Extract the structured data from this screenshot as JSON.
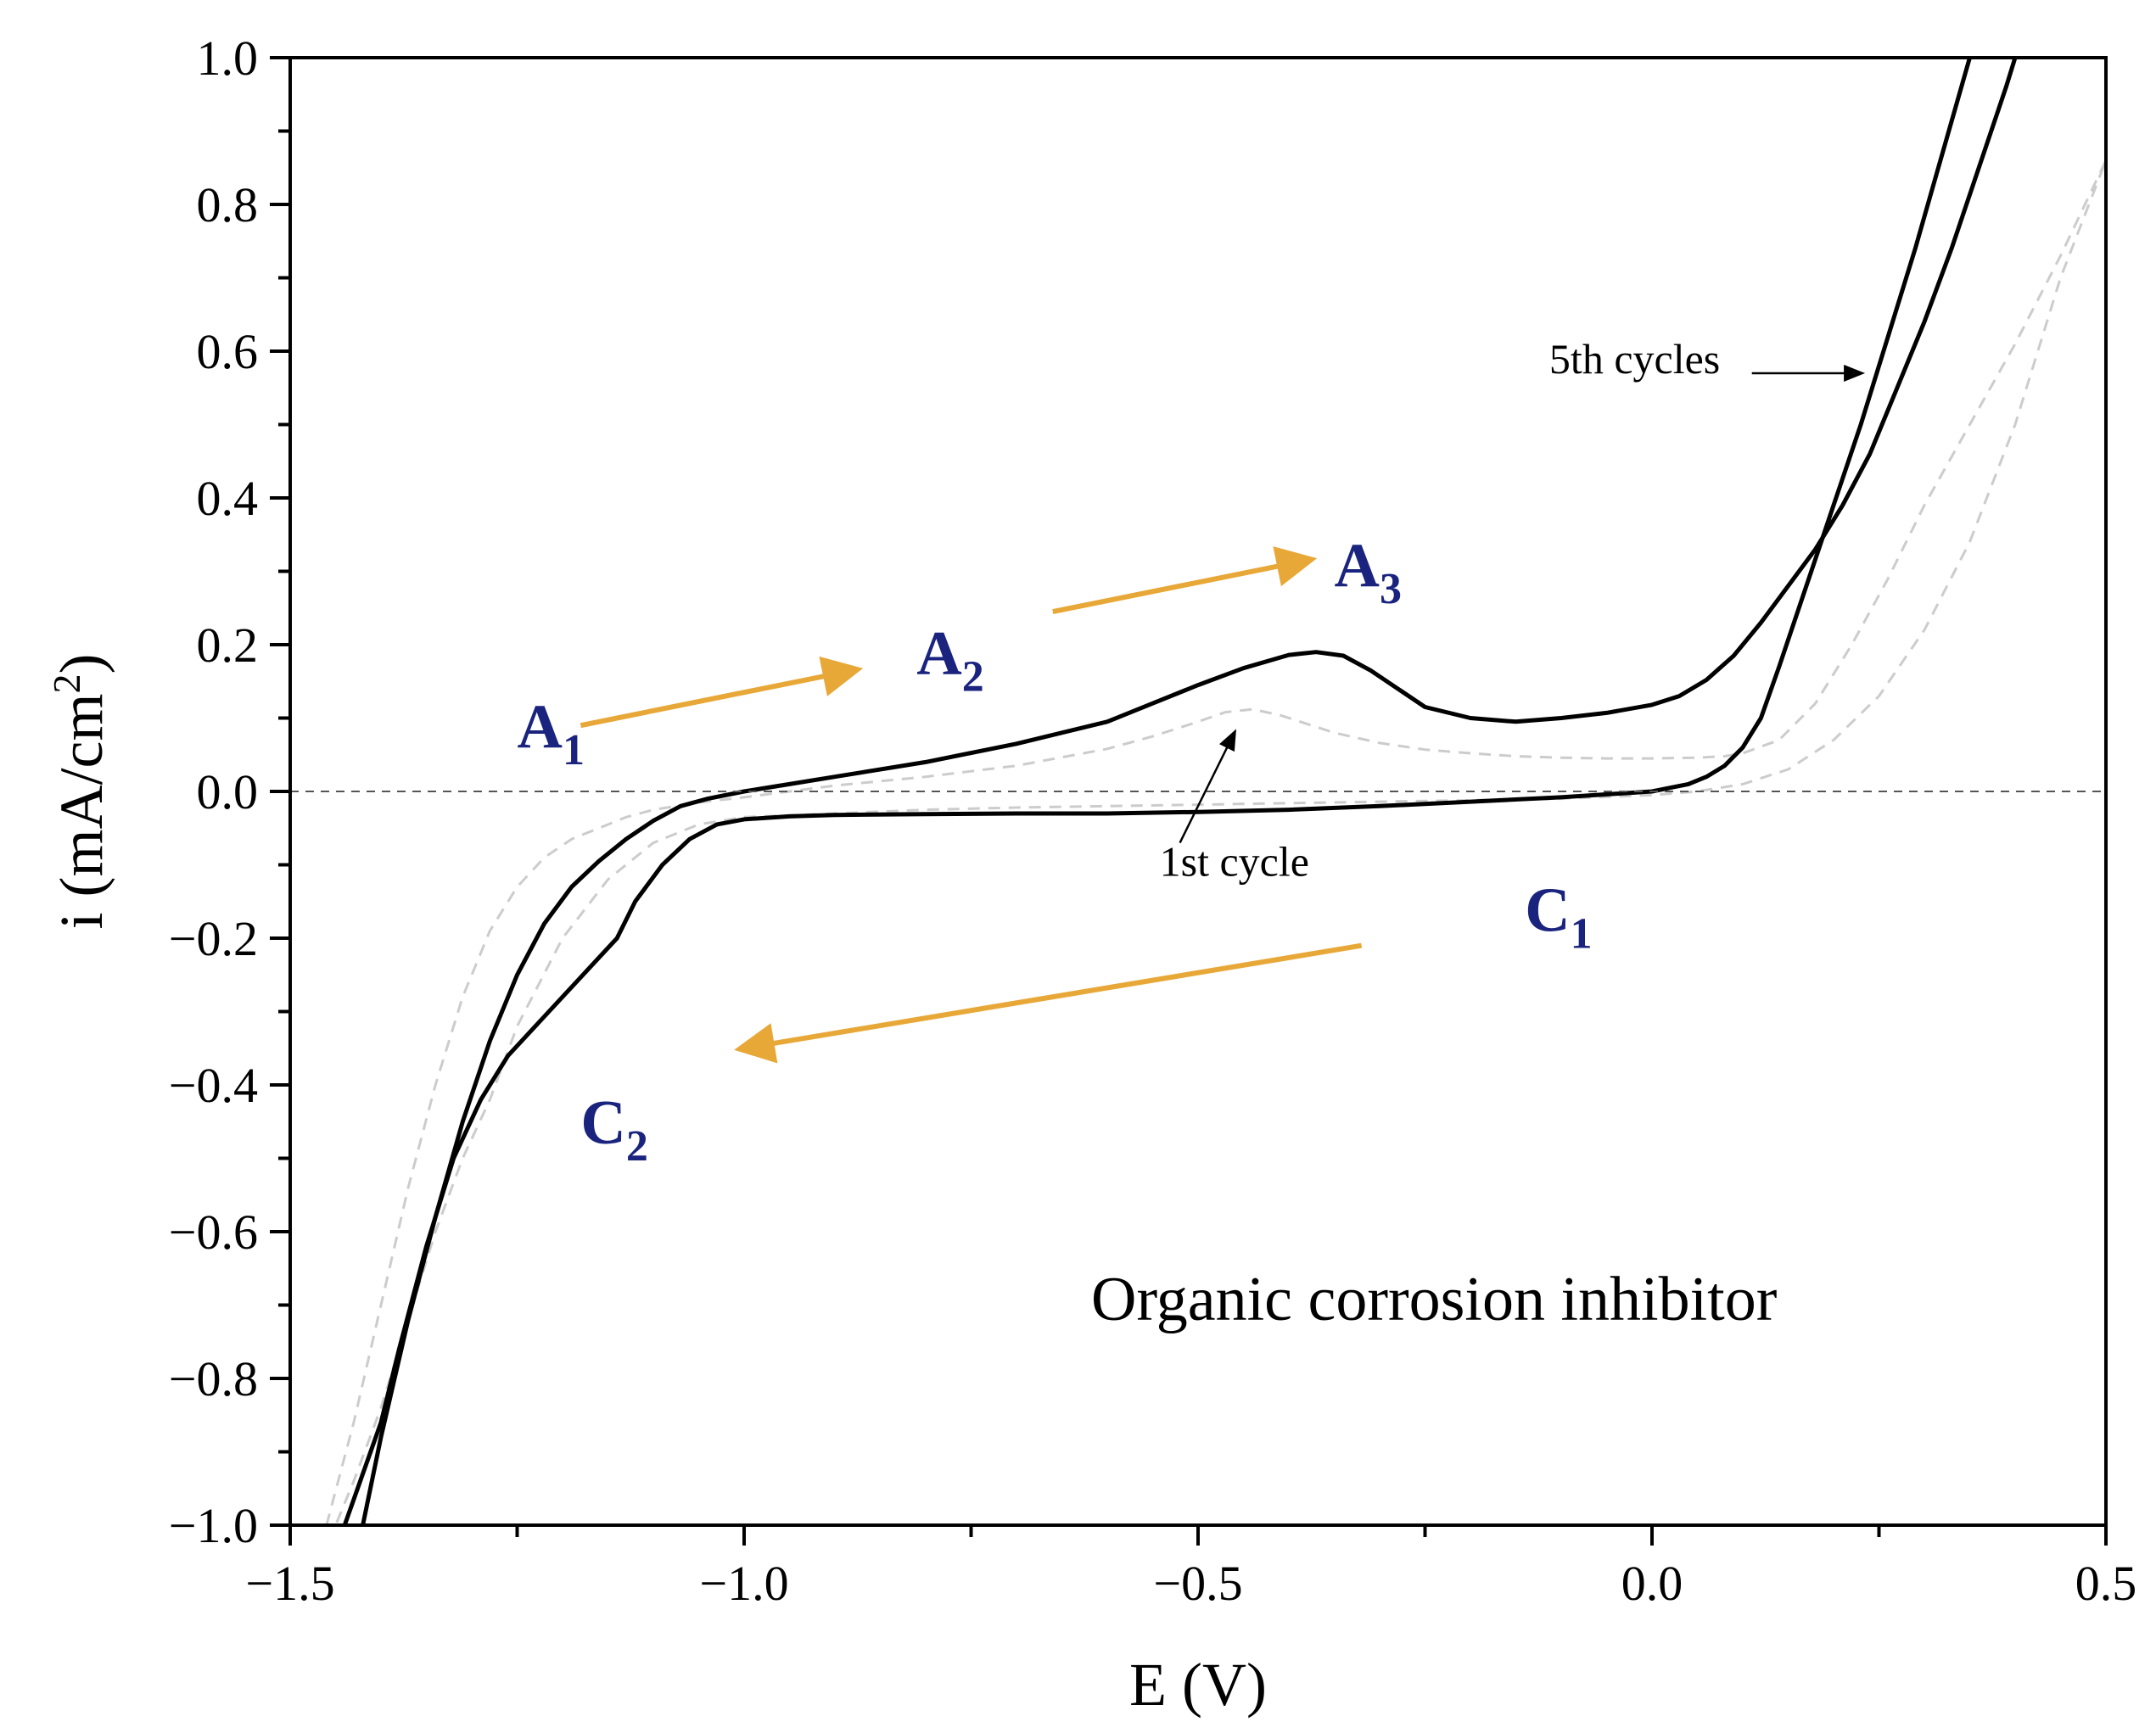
{
  "chart_data": {
    "type": "line",
    "xlabel": "E (V)",
    "ylabel_main": "i (mA/cm",
    "ylabel_sup": "2",
    "ylabel_close": ")",
    "xlim": [
      -1.5,
      0.5
    ],
    "ylim": [
      -1.0,
      1.0
    ],
    "xticks": [
      -1.5,
      -1.0,
      -0.5,
      0.0,
      0.5
    ],
    "xtick_labels": [
      "−1.5",
      "−1.0",
      "−0.5",
      "0.0",
      "0.5"
    ],
    "yticks": [
      -1.0,
      -0.8,
      -0.6,
      -0.4,
      -0.2,
      0.0,
      0.2,
      0.4,
      0.6,
      0.8,
      1.0
    ],
    "ytick_labels": [
      "−1.0",
      "−0.8",
      "−0.6",
      "−0.4",
      "−0.2",
      "0.0",
      "0.2",
      "0.4",
      "0.6",
      "0.8",
      "1.0"
    ],
    "grid": false,
    "zero_line": true,
    "inset_label": "Organic corrosion inhibitor",
    "series": [
      {
        "color": "#cccccc",
        "style": "dashed",
        "x": [
          -1.46,
          -1.43,
          -1.4,
          -1.37,
          -1.34,
          -1.31,
          -1.28,
          -1.25,
          -1.22,
          -1.19,
          -1.16,
          -1.13,
          -1.1,
          -1.05,
          -1.0,
          -0.95,
          -0.9,
          -0.8,
          -0.7,
          -0.6,
          -0.55,
          -0.5,
          -0.47,
          -0.44,
          -0.41,
          -0.38,
          -0.35,
          -0.3,
          -0.25,
          -0.2,
          -0.15,
          -0.1,
          -0.05,
          0.0,
          0.05,
          0.08,
          0.1,
          0.14,
          0.18,
          0.22,
          0.26,
          0.3,
          0.35,
          0.4,
          0.45,
          0.5,
          0.45,
          0.4,
          0.35,
          0.3,
          0.25,
          0.2,
          0.15,
          0.1,
          0.05,
          0.0,
          -0.1,
          -0.2,
          -0.3,
          -0.4,
          -0.5,
          -0.6,
          -0.7,
          -0.8,
          -0.9,
          -1.0,
          -1.05,
          -1.1,
          -1.15,
          -1.2,
          -1.25,
          -1.28,
          -1.31,
          -1.34,
          -1.37,
          -1.4,
          -1.43,
          -1.45
        ],
        "y": [
          -1.0,
          -0.86,
          -0.7,
          -0.54,
          -0.4,
          -0.28,
          -0.19,
          -0.13,
          -0.09,
          -0.065,
          -0.05,
          -0.035,
          -0.025,
          -0.015,
          -0.008,
          0.0,
          0.008,
          0.02,
          0.035,
          0.058,
          0.075,
          0.095,
          0.108,
          0.112,
          0.104,
          0.092,
          0.08,
          0.066,
          0.057,
          0.052,
          0.048,
          0.046,
          0.045,
          0.045,
          0.046,
          0.048,
          0.052,
          0.07,
          0.12,
          0.2,
          0.29,
          0.39,
          0.5,
          0.61,
          0.73,
          0.86,
          0.7,
          0.5,
          0.34,
          0.22,
          0.13,
          0.07,
          0.03,
          0.01,
          0.0,
          -0.005,
          -0.01,
          -0.012,
          -0.014,
          -0.016,
          -0.018,
          -0.02,
          -0.022,
          -0.025,
          -0.03,
          -0.035,
          -0.045,
          -0.07,
          -0.12,
          -0.2,
          -0.32,
          -0.42,
          -0.5,
          -0.6,
          -0.72,
          -0.84,
          -0.94,
          -1.0
        ]
      },
      {
        "name": "1st cycle",
        "color": "#000000",
        "style": "solid",
        "x": [
          -1.42,
          -1.4,
          -1.37,
          -1.34,
          -1.31,
          -1.28,
          -1.25,
          -1.22,
          -1.19,
          -1.16,
          -1.13,
          -1.1,
          -1.07,
          -1.04,
          -1.0,
          -0.95,
          -0.9,
          -0.8,
          -0.7,
          -0.6,
          -0.55,
          -0.5,
          -0.45,
          -0.4,
          -0.37,
          -0.34,
          -0.31,
          -0.28,
          -0.25,
          -0.2,
          -0.15,
          -0.1,
          -0.05,
          0.0,
          0.03,
          0.06,
          0.09,
          0.12,
          0.15,
          0.18,
          0.21,
          0.24,
          0.27,
          0.3,
          0.33,
          0.36,
          0.39,
          0.4
        ],
        "y": [
          -1.0,
          -0.88,
          -0.72,
          -0.58,
          -0.45,
          -0.34,
          -0.25,
          -0.18,
          -0.13,
          -0.095,
          -0.065,
          -0.04,
          -0.02,
          -0.01,
          0.0,
          0.01,
          0.02,
          0.04,
          0.065,
          0.095,
          0.12,
          0.145,
          0.168,
          0.186,
          0.19,
          0.185,
          0.165,
          0.14,
          0.115,
          0.1,
          0.095,
          0.1,
          0.107,
          0.118,
          0.13,
          0.152,
          0.185,
          0.23,
          0.28,
          0.33,
          0.39,
          0.46,
          0.55,
          0.64,
          0.74,
          0.85,
          0.96,
          1.0
        ]
      },
      {
        "name": "5th cycles",
        "color": "#000000",
        "style": "solid",
        "x": [
          0.35,
          0.32,
          0.29,
          0.26,
          0.23,
          0.2,
          0.17,
          0.14,
          0.12,
          0.1,
          0.08,
          0.06,
          0.04,
          0.02,
          0.0,
          -0.1,
          -0.2,
          -0.3,
          -0.4,
          -0.5,
          -0.6,
          -0.7,
          -0.8,
          -0.9,
          -0.95,
          -1.0,
          -1.03,
          -1.06,
          -1.09,
          -1.12,
          -1.14,
          -1.17,
          -1.2,
          -1.23,
          -1.26,
          -1.29,
          -1.32,
          -1.35,
          -1.38,
          -1.4,
          -1.44
        ],
        "y": [
          1.0,
          0.87,
          0.74,
          0.62,
          0.5,
          0.39,
          0.28,
          0.17,
          0.1,
          0.06,
          0.035,
          0.02,
          0.01,
          0.005,
          0.0,
          -0.008,
          -0.014,
          -0.02,
          -0.025,
          -0.028,
          -0.03,
          -0.03,
          -0.031,
          -0.032,
          -0.034,
          -0.038,
          -0.045,
          -0.065,
          -0.1,
          -0.15,
          -0.2,
          -0.24,
          -0.28,
          -0.32,
          -0.36,
          -0.42,
          -0.5,
          -0.62,
          -0.76,
          -0.86,
          -1.0
        ]
      }
    ],
    "peak_labels": [
      {
        "letter": "A",
        "sub": "1",
        "x": -1.25,
        "y": 0.06
      },
      {
        "letter": "A",
        "sub": "2",
        "x": -0.81,
        "y": 0.16
      },
      {
        "letter": "A",
        "sub": "3",
        "x": -0.35,
        "y": 0.28
      },
      {
        "letter": "C",
        "sub": "1",
        "x": -0.14,
        "y": -0.19
      },
      {
        "letter": "C",
        "sub": "2",
        "x": -1.18,
        "y": -0.48
      }
    ],
    "direction_arrows": [
      {
        "x1": -1.18,
        "y1": 0.09,
        "x2": -0.88,
        "y2": 0.165
      },
      {
        "x1": -0.66,
        "y1": 0.245,
        "x2": -0.38,
        "y2": 0.315
      },
      {
        "x1": -0.32,
        "y1": -0.21,
        "x2": -1.0,
        "y2": -0.35
      }
    ],
    "annotations": [
      {
        "text": "1st cycle",
        "text_x": -0.46,
        "text_y": -0.115,
        "x1": -0.52,
        "y1": -0.07,
        "x2": -0.46,
        "y2": 0.08
      },
      {
        "text": "5th cycles",
        "text_x": 0.075,
        "text_y": 0.57,
        "x1": 0.11,
        "y1": 0.57,
        "x2": 0.23,
        "y2": 0.57
      }
    ],
    "colors": {
      "arrow": "#E8A838",
      "peak_label": "#1a237e",
      "axis": "#000000"
    }
  }
}
